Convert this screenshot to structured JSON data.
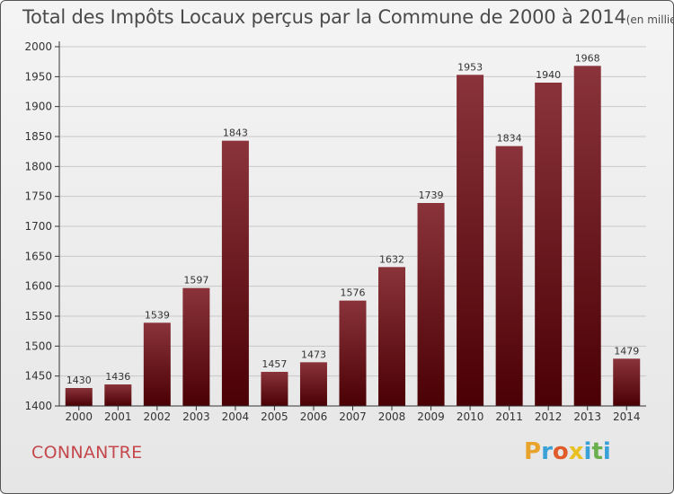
{
  "header": {
    "title": "Total des Impôts Locaux perçus par la Commune de 2000 à 2014",
    "unit": "(en milliers d'€)"
  },
  "footer": {
    "commune": "CONNANTRE",
    "logo_letters": [
      "P",
      "r",
      "o",
      "x",
      "i",
      "t",
      "i"
    ],
    "logo_colors": [
      "#e8a32a",
      "#3aa0d8",
      "#e05a2a",
      "#e8c020",
      "#3aa0d8",
      "#6ab04c",
      "#3aa0d8"
    ]
  },
  "colors": {
    "bar_top": "#8a333a",
    "bar_bottom": "#4a0004",
    "axis": "#333333",
    "grid": "#c8c8c8"
  },
  "chart_data": {
    "type": "bar",
    "title": "Total des Impôts Locaux perçus par la Commune de 2000 à 2014",
    "xlabel": "",
    "ylabel": "",
    "categories": [
      "2000",
      "2001",
      "2002",
      "2003",
      "2004",
      "2005",
      "2006",
      "2007",
      "2008",
      "2009",
      "2010",
      "2011",
      "2012",
      "2013",
      "2014"
    ],
    "values": [
      1430,
      1436,
      1539,
      1597,
      1843,
      1457,
      1473,
      1576,
      1632,
      1739,
      1953,
      1834,
      1940,
      1968,
      1479
    ],
    "ylim": [
      1400,
      2000
    ],
    "yticks": [
      1400,
      1450,
      1500,
      1550,
      1600,
      1650,
      1700,
      1750,
      1800,
      1850,
      1900,
      1950,
      2000
    ],
    "grid": "horizontal",
    "legend": "none"
  }
}
